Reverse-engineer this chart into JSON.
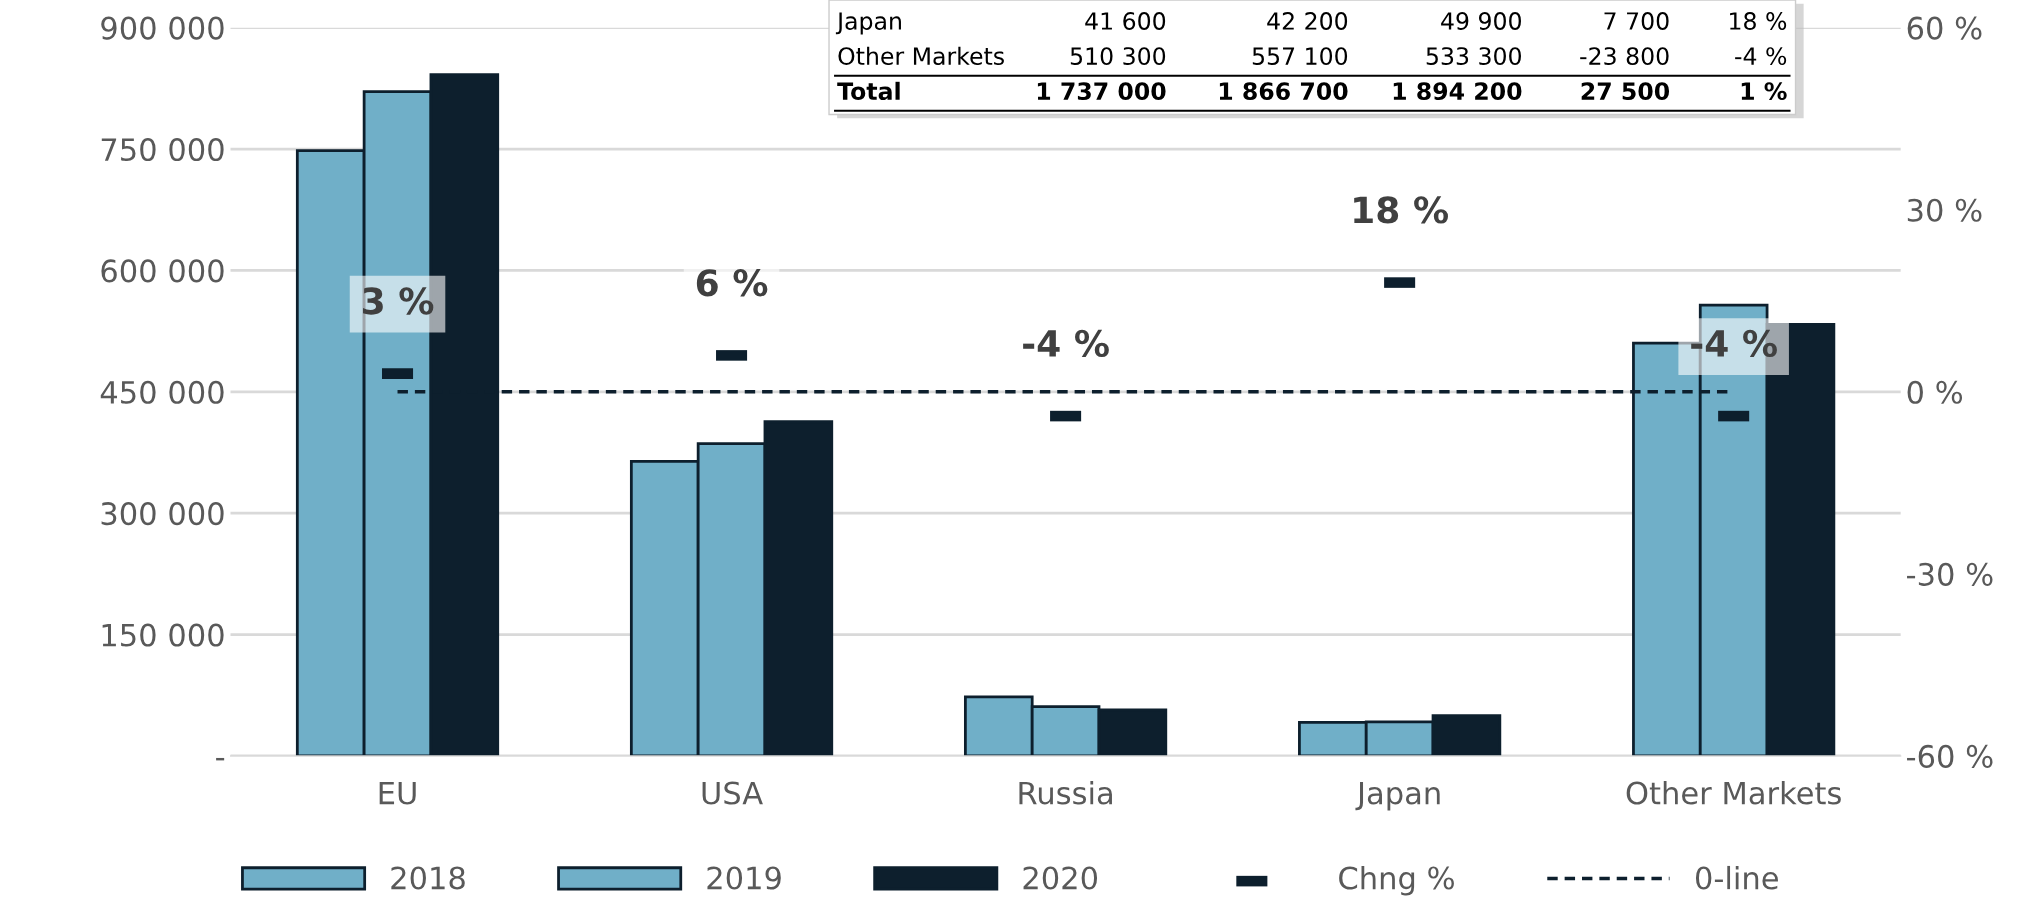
{
  "chart_data": {
    "type": "bar",
    "categories": [
      "EU",
      "USA",
      "Russia",
      "Japan",
      "Other Markets"
    ],
    "series": [
      {
        "name": "2018",
        "color": "#70afc8",
        "values": [
          748000,
          364000,
          73000,
          41600,
          510300
        ]
      },
      {
        "name": "2019",
        "color": "#70afc8",
        "values": [
          821000,
          386000,
          61000,
          42200,
          557100
        ]
      },
      {
        "name": "2020",
        "color": "#0d1f2d",
        "values": [
          842000,
          413000,
          57000,
          49900,
          533300
        ]
      },
      {
        "name": "Chng %",
        "type": "scatter",
        "axis": "y2",
        "color": "#0d1f2d",
        "values": [
          3,
          6,
          -4,
          18,
          -4
        ],
        "value_labels": [
          "3 %",
          "6 %",
          "-4 %",
          "18 %",
          "-4 %"
        ]
      }
    ],
    "ylim": [
      0,
      900000
    ],
    "yticks": [
      {
        "value": 0,
        "label": "-"
      },
      {
        "value": 150000,
        "label": "150 000"
      },
      {
        "value": 300000,
        "label": "300 000"
      },
      {
        "value": 450000,
        "label": "450 000"
      },
      {
        "value": 600000,
        "label": "600 000"
      },
      {
        "value": 750000,
        "label": "750 000"
      },
      {
        "value": 900000,
        "label": "900 000"
      }
    ],
    "y2lim": [
      -60,
      60
    ],
    "y2ticks": [
      {
        "value": -60,
        "label": "-60 %"
      },
      {
        "value": -30,
        "label": "-30 %"
      },
      {
        "value": 0,
        "label": "0 %"
      },
      {
        "value": 30,
        "label": "30 %"
      },
      {
        "value": 60,
        "label": "60 %"
      }
    ],
    "ref_lines": [
      {
        "axis": "y2",
        "value": 0,
        "label": "0-line",
        "color": "#0d1f2d",
        "line_style": "dashed"
      }
    ],
    "grid": "y",
    "legend": "bottom",
    "annotations": [
      "Japan",
      "41 600",
      "42 200",
      "49 900",
      "7 700",
      "18 %",
      "Other Markets",
      "510 300",
      "557 100",
      "533 300",
      "-23 800",
      "-4 %",
      "Total",
      "1 737 000",
      "1 866 700",
      "1 894 200",
      "27 500",
      "1 %"
    ]
  }
}
